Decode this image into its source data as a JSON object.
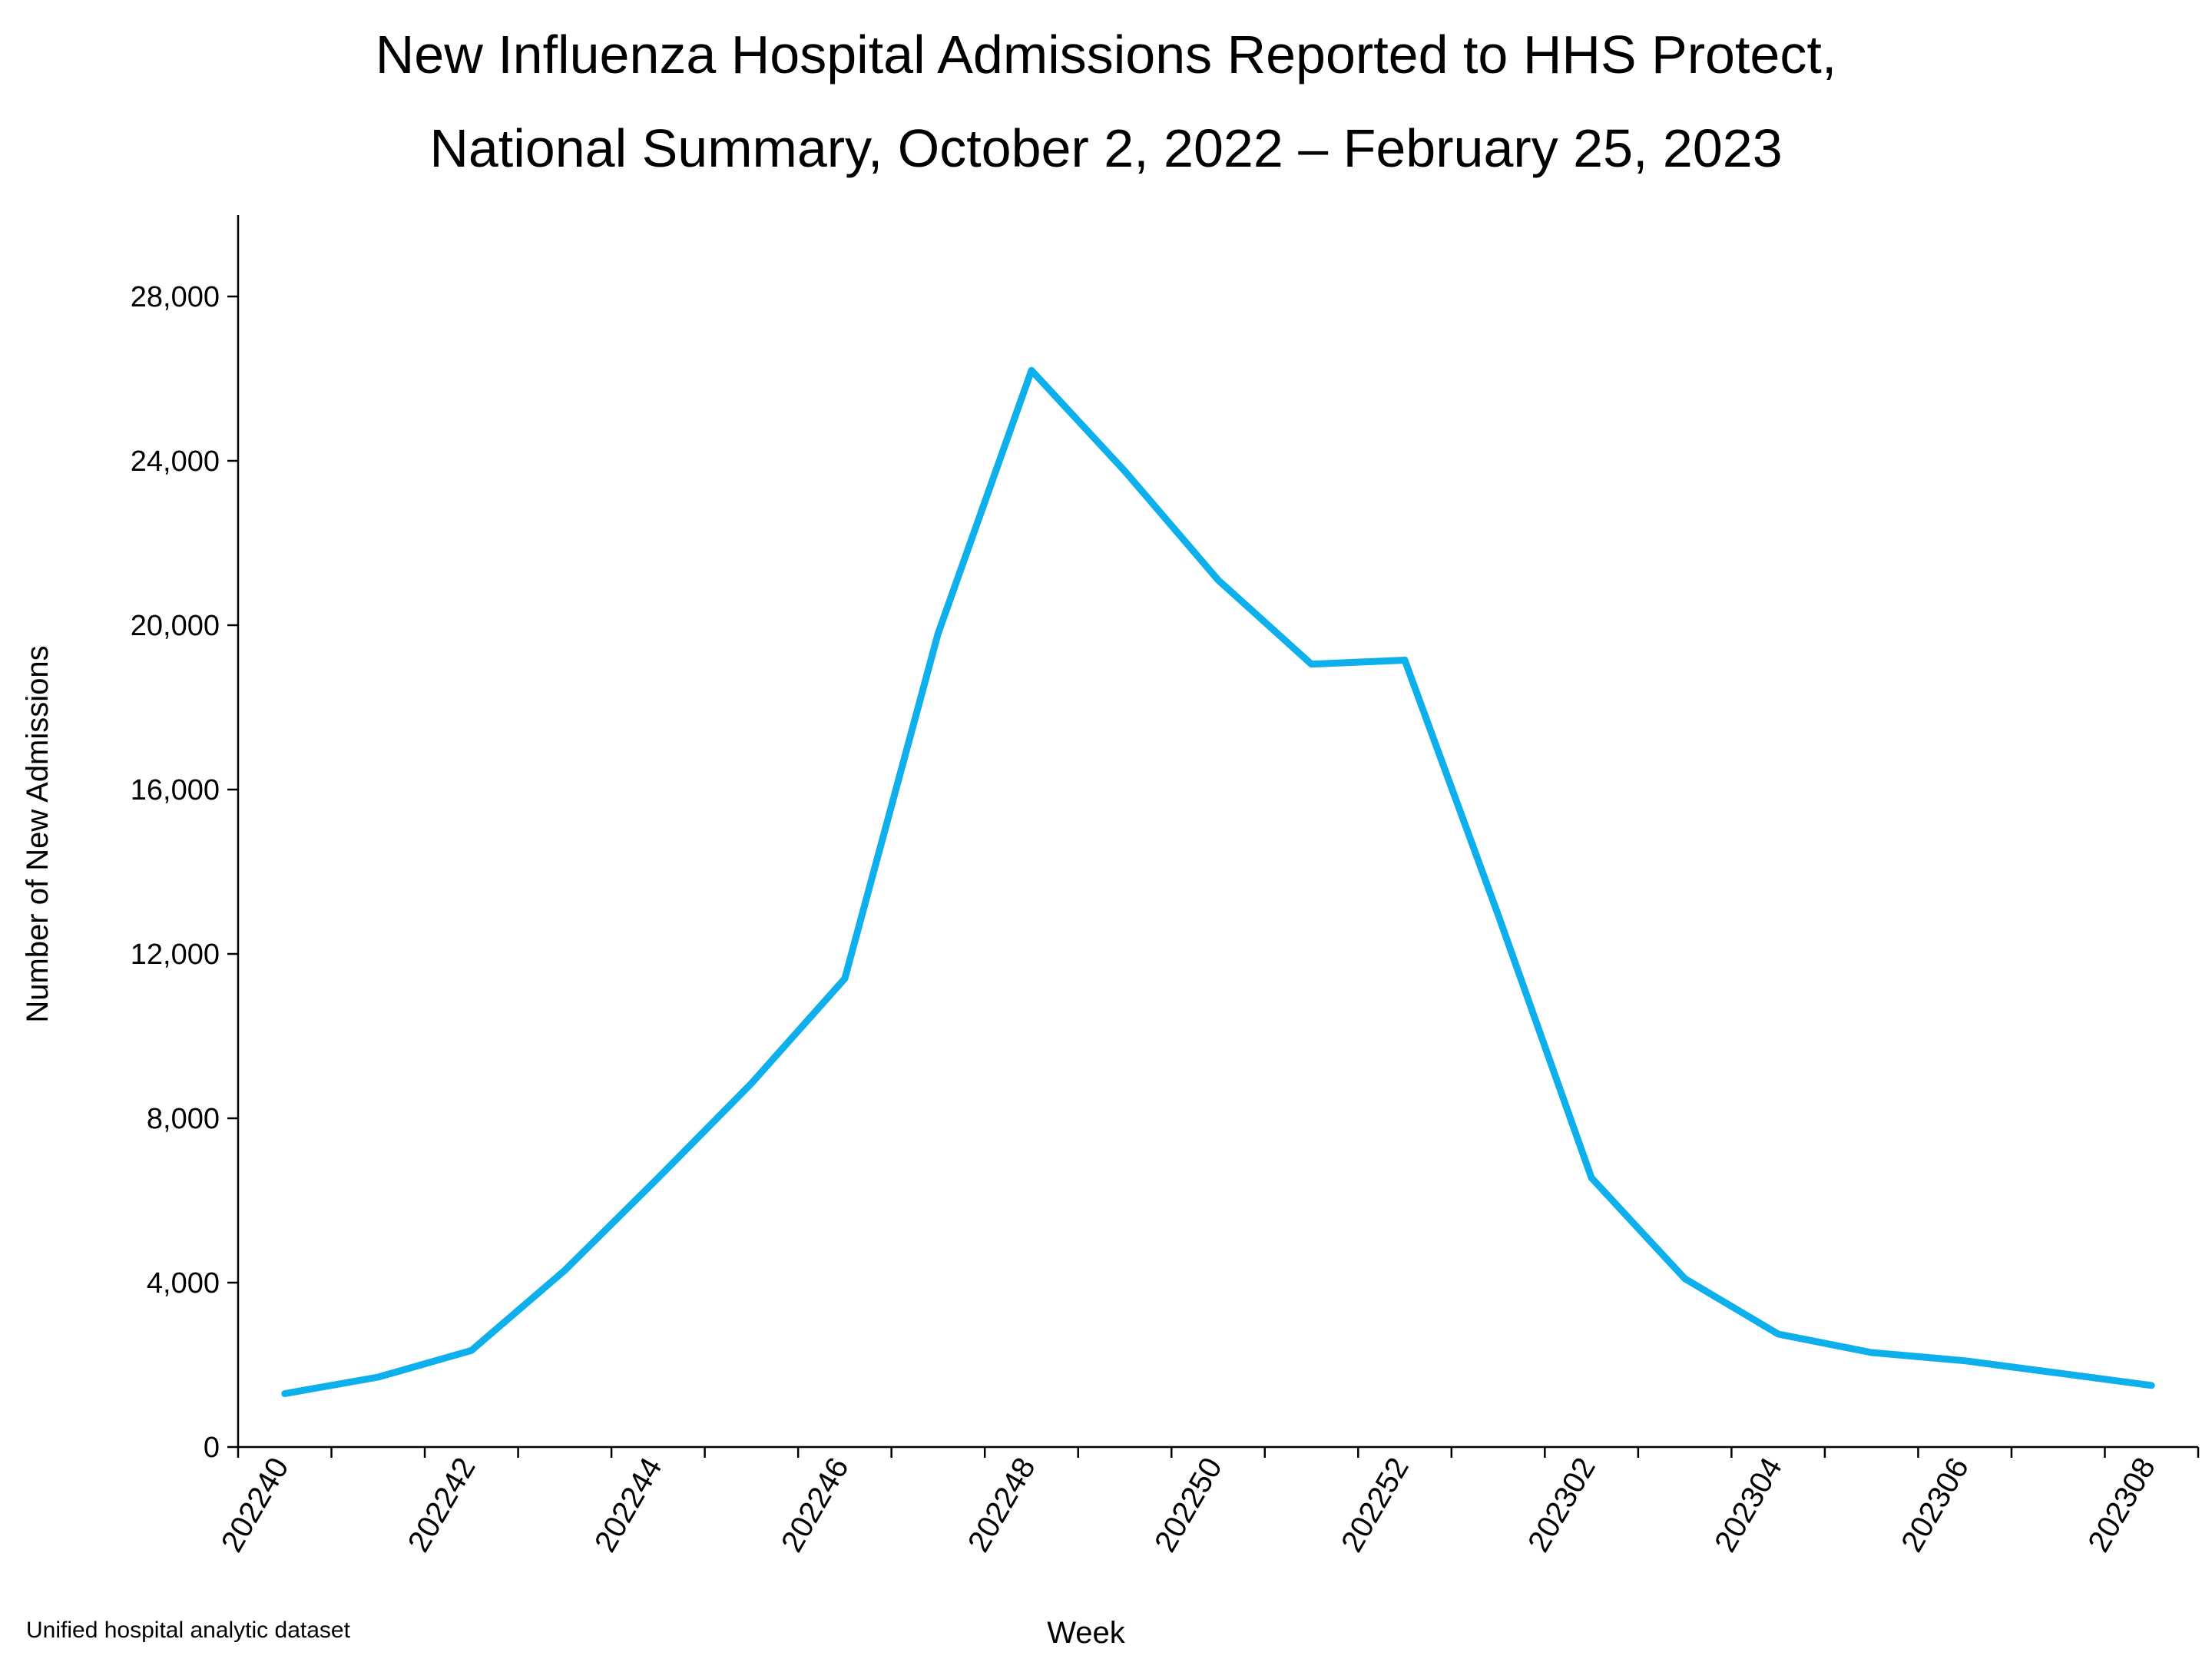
{
  "title_line1": "New Influenza Hospital Admissions Reported to HHS Protect,",
  "title_line2": "National Summary, October 2, 2022 – February 25, 2023",
  "source_note": "Unified hospital analytic dataset",
  "colors": {
    "line": "#0DB0EC",
    "axis": "#000000",
    "background": "#FFFFFF"
  },
  "chart_data": {
    "type": "line",
    "title": "New Influenza Hospital Admissions Reported to HHS Protect, National Summary, October 2, 2022 – February 25, 2023",
    "xlabel": "Week",
    "ylabel": "Number of New Admissions",
    "ylim": [
      0,
      30000
    ],
    "yticks": [
      0,
      4000,
      8000,
      12000,
      16000,
      20000,
      24000,
      28000
    ],
    "ytick_labels": [
      "0",
      "4,000",
      "8,000",
      "12,000",
      "16,000",
      "20,000",
      "24,000",
      "28,000"
    ],
    "x": [
      "202240",
      "202241",
      "202242",
      "202243",
      "202244",
      "202245",
      "202246",
      "202247",
      "202248",
      "202249",
      "202250",
      "202251",
      "202252",
      "202301",
      "202302",
      "202303",
      "202304",
      "202305",
      "202306",
      "202307",
      "202308"
    ],
    "xtick_labels": [
      "202240",
      "202242",
      "202244",
      "202246",
      "202248",
      "202250",
      "202252",
      "202302",
      "202304",
      "202306",
      "202308"
    ],
    "series": [
      {
        "values": [
          1300,
          1700,
          2350,
          4300,
          6550,
          8850,
          11400,
          19800,
          26200,
          23750,
          21100,
          19050,
          19150,
          12950,
          6550,
          4100,
          2750,
          2300,
          2100,
          1800,
          1500
        ]
      }
    ],
    "grid": false,
    "legend": "none"
  }
}
